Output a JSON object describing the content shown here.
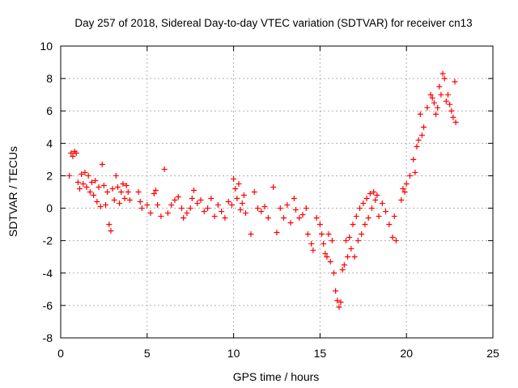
{
  "chart_data": {
    "type": "scatter",
    "title": "Day 257 of 2018, Sidereal Day-to-day VTEC variation (SDTVAR) for receiver cn13",
    "xlabel": "GPS time / hours",
    "ylabel": "SDTVAR / TECUs",
    "xlim": [
      0,
      25
    ],
    "ylim": [
      -8,
      10
    ],
    "x_ticks": [
      0,
      5,
      10,
      15,
      20,
      25
    ],
    "y_ticks": [
      -8,
      -6,
      -4,
      -2,
      0,
      2,
      4,
      6,
      8,
      10
    ],
    "grid": true,
    "marker": "+",
    "series": [
      {
        "name": "SDTVAR",
        "color": "#ff0000",
        "points": [
          [
            0.5,
            2.0
          ],
          [
            0.6,
            3.4
          ],
          [
            0.7,
            3.2
          ],
          [
            0.8,
            3.5
          ],
          [
            0.9,
            3.4
          ],
          [
            1.0,
            1.6
          ],
          [
            1.1,
            1.2
          ],
          [
            1.2,
            2.1
          ],
          [
            1.3,
            1.5
          ],
          [
            1.4,
            2.2
          ],
          [
            1.5,
            1.3
          ],
          [
            1.6,
            2.0
          ],
          [
            1.7,
            1.0
          ],
          [
            1.8,
            1.6
          ],
          [
            1.9,
            0.8
          ],
          [
            2.0,
            1.7
          ],
          [
            2.1,
            0.4
          ],
          [
            2.2,
            1.3
          ],
          [
            2.3,
            0.1
          ],
          [
            2.4,
            2.7
          ],
          [
            2.5,
            1.4
          ],
          [
            2.6,
            0.2
          ],
          [
            2.7,
            1.0
          ],
          [
            2.8,
            -1.0
          ],
          [
            2.9,
            -1.4
          ],
          [
            3.0,
            1.2
          ],
          [
            3.1,
            0.5
          ],
          [
            3.2,
            2.0
          ],
          [
            3.3,
            1.3
          ],
          [
            3.4,
            0.3
          ],
          [
            3.5,
            1.0
          ],
          [
            3.6,
            1.5
          ],
          [
            3.7,
            0.6
          ],
          [
            3.8,
            1.4
          ],
          [
            3.9,
            1.0
          ],
          [
            4.0,
            0.5
          ],
          [
            4.5,
            1.0
          ],
          [
            4.6,
            0.4
          ],
          [
            4.7,
            0.0
          ],
          [
            5.0,
            0.2
          ],
          [
            5.2,
            -0.3
          ],
          [
            5.4,
            0.9
          ],
          [
            5.5,
            1.1
          ],
          [
            5.6,
            0.2
          ],
          [
            5.8,
            -0.5
          ],
          [
            6.0,
            2.4
          ],
          [
            6.2,
            -0.3
          ],
          [
            6.4,
            0.2
          ],
          [
            6.6,
            0.5
          ],
          [
            6.8,
            0.7
          ],
          [
            7.0,
            0.0
          ],
          [
            7.1,
            -0.6
          ],
          [
            7.3,
            -0.3
          ],
          [
            7.5,
            0.0
          ],
          [
            7.6,
            0.6
          ],
          [
            7.7,
            1.1
          ],
          [
            7.9,
            0.3
          ],
          [
            8.1,
            0.5
          ],
          [
            8.3,
            -0.2
          ],
          [
            8.5,
            0.0
          ],
          [
            8.7,
            0.6
          ],
          [
            8.9,
            -0.5
          ],
          [
            9.1,
            0.2
          ],
          [
            9.3,
            -0.2
          ],
          [
            9.5,
            -0.6
          ],
          [
            9.7,
            0.4
          ],
          [
            9.9,
            0.2
          ],
          [
            10.0,
            1.8
          ],
          [
            10.1,
            1.2
          ],
          [
            10.2,
            0.6
          ],
          [
            10.3,
            1.5
          ],
          [
            10.4,
            -0.1
          ],
          [
            10.5,
            0.3
          ],
          [
            10.6,
            0.8
          ],
          [
            10.7,
            -0.3
          ],
          [
            11.0,
            -1.6
          ],
          [
            11.2,
            1.0
          ],
          [
            11.4,
            0.0
          ],
          [
            11.6,
            -0.2
          ],
          [
            11.8,
            0.1
          ],
          [
            12.0,
            -0.6
          ],
          [
            12.3,
            1.3
          ],
          [
            12.5,
            -1.5
          ],
          [
            12.7,
            0.0
          ],
          [
            12.9,
            -0.6
          ],
          [
            13.1,
            0.2
          ],
          [
            13.3,
            -0.9
          ],
          [
            13.5,
            0.6
          ],
          [
            13.6,
            -0.1
          ],
          [
            13.8,
            -0.6
          ],
          [
            14.0,
            -0.4
          ],
          [
            14.2,
            0.0
          ],
          [
            14.3,
            -1.6
          ],
          [
            14.5,
            -2.2
          ],
          [
            14.6,
            -2.6
          ],
          [
            14.8,
            -0.6
          ],
          [
            15.0,
            -1.0
          ],
          [
            15.1,
            -1.6
          ],
          [
            15.2,
            -2.2
          ],
          [
            15.3,
            -2.8
          ],
          [
            15.4,
            -3.0
          ],
          [
            15.5,
            -1.6
          ],
          [
            15.6,
            -3.3
          ],
          [
            15.7,
            -2.0
          ],
          [
            15.8,
            -4.0
          ],
          [
            15.9,
            -5.1
          ],
          [
            16.0,
            -5.7
          ],
          [
            16.1,
            -6.1
          ],
          [
            16.2,
            -5.8
          ],
          [
            16.3,
            -3.8
          ],
          [
            16.4,
            -3.5
          ],
          [
            16.5,
            -2.0
          ],
          [
            16.6,
            -3.0
          ],
          [
            16.7,
            -1.8
          ],
          [
            16.8,
            -2.5
          ],
          [
            16.9,
            -1.0
          ],
          [
            17.0,
            -3.0
          ],
          [
            17.1,
            -0.5
          ],
          [
            17.2,
            -2.0
          ],
          [
            17.3,
            0.0
          ],
          [
            17.4,
            -1.6
          ],
          [
            17.5,
            0.3
          ],
          [
            17.6,
            -1.0
          ],
          [
            17.7,
            0.6
          ],
          [
            17.8,
            -0.6
          ],
          [
            17.9,
            0.9
          ],
          [
            18.0,
            0.0
          ],
          [
            18.1,
            1.0
          ],
          [
            18.2,
            0.5
          ],
          [
            18.3,
            0.8
          ],
          [
            18.4,
            -0.5
          ],
          [
            18.6,
            0.3
          ],
          [
            18.8,
            -0.2
          ],
          [
            19.0,
            -1.0
          ],
          [
            19.2,
            -1.8
          ],
          [
            19.3,
            -0.5
          ],
          [
            19.4,
            -2.0
          ],
          [
            19.7,
            0.5
          ],
          [
            19.8,
            1.2
          ],
          [
            19.9,
            1.0
          ],
          [
            20.0,
            1.5
          ],
          [
            20.2,
            2.0
          ],
          [
            20.4,
            3.0
          ],
          [
            20.5,
            2.2
          ],
          [
            20.6,
            3.8
          ],
          [
            20.7,
            4.2
          ],
          [
            20.8,
            5.8
          ],
          [
            20.9,
            4.5
          ],
          [
            21.0,
            5.0
          ],
          [
            21.2,
            6.2
          ],
          [
            21.4,
            7.0
          ],
          [
            21.5,
            6.8
          ],
          [
            21.6,
            6.5
          ],
          [
            21.7,
            5.8
          ],
          [
            21.8,
            6.2
          ],
          [
            21.9,
            7.5
          ],
          [
            22.0,
            7.0
          ],
          [
            22.1,
            8.3
          ],
          [
            22.2,
            8.0
          ],
          [
            22.3,
            6.6
          ],
          [
            22.4,
            7.0
          ],
          [
            22.5,
            6.4
          ],
          [
            22.6,
            6.0
          ],
          [
            22.7,
            5.6
          ],
          [
            22.8,
            7.8
          ],
          [
            22.85,
            5.3
          ]
        ]
      }
    ]
  }
}
